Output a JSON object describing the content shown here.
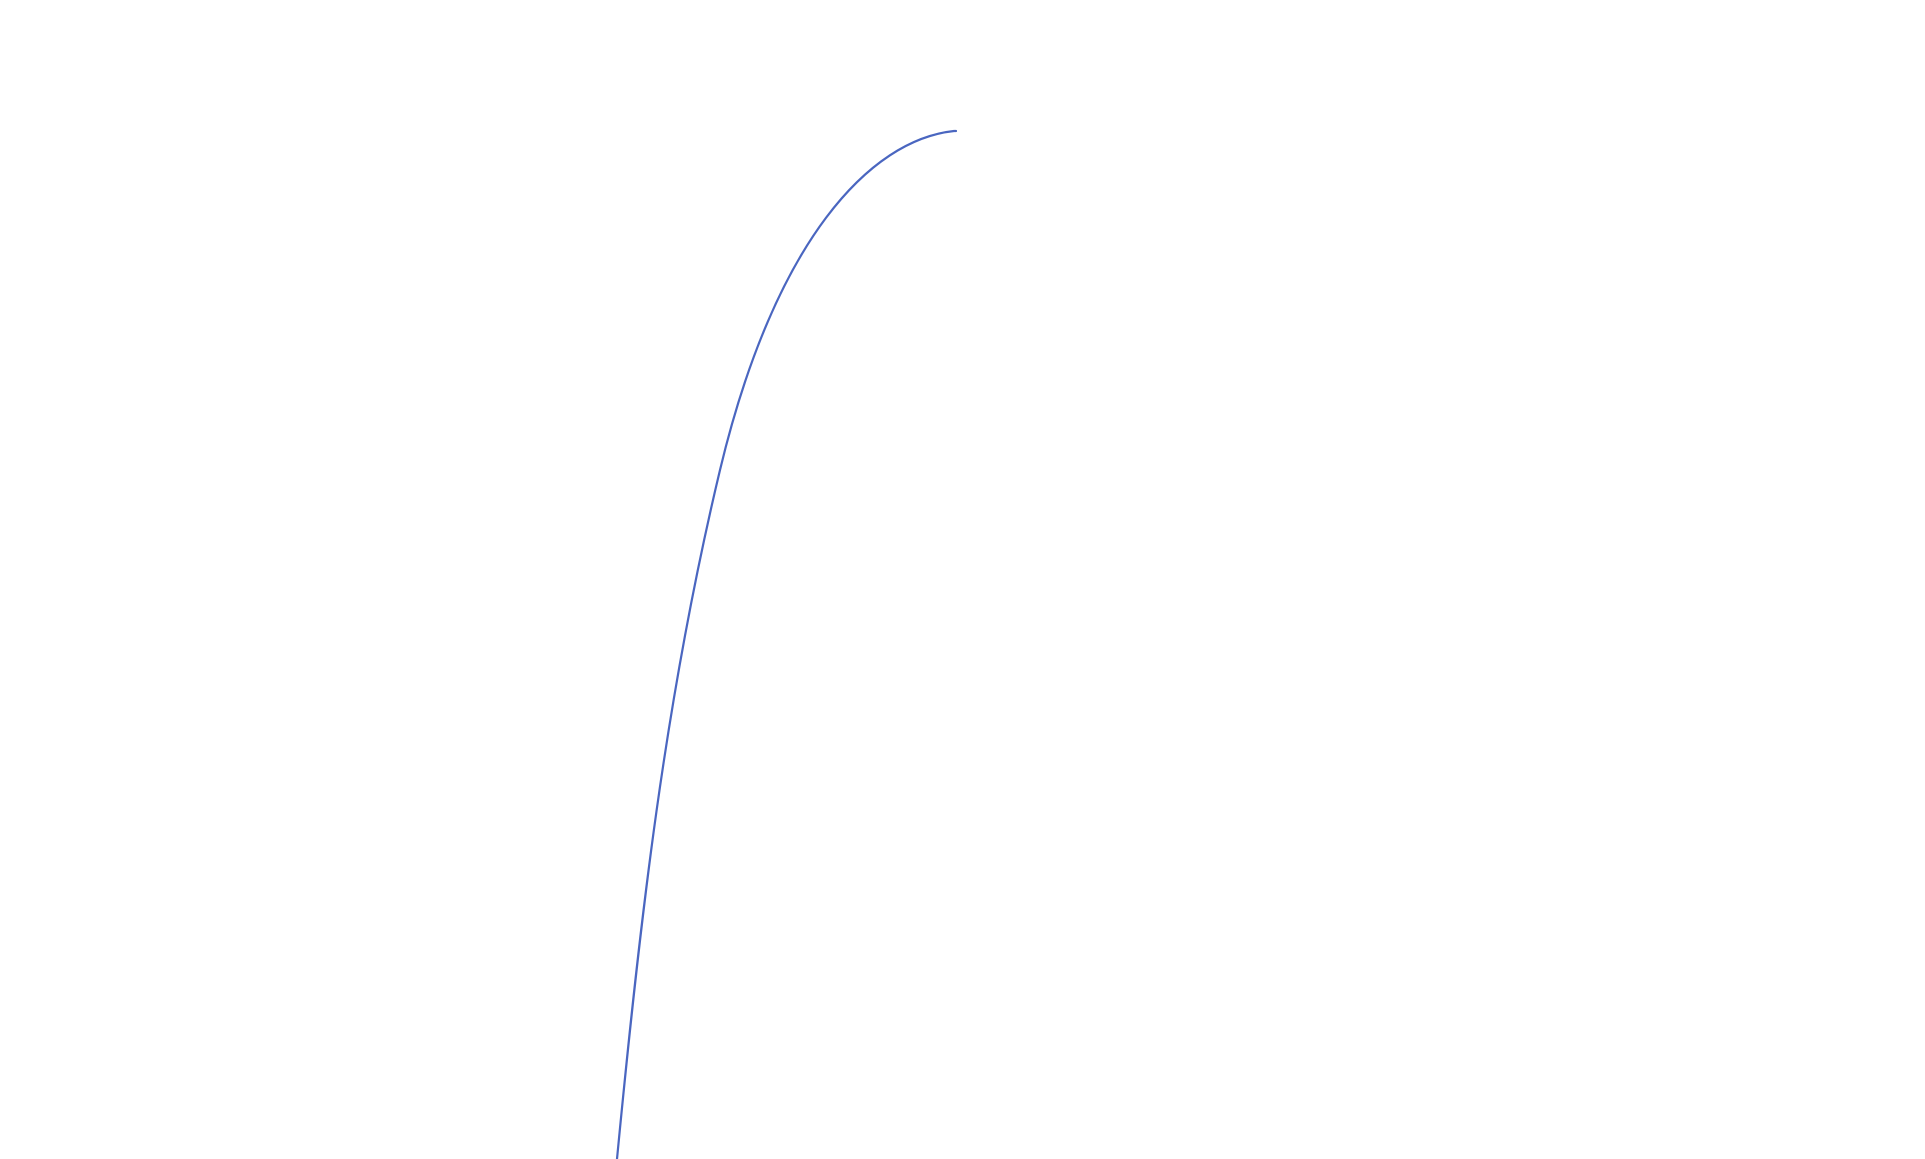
{
  "chart_data": {
    "type": "line",
    "title": "",
    "xlabel": "",
    "ylabel": "",
    "grid": false,
    "axes_visible": false,
    "legend": "none",
    "series_color": "#4a66c0"
  }
}
